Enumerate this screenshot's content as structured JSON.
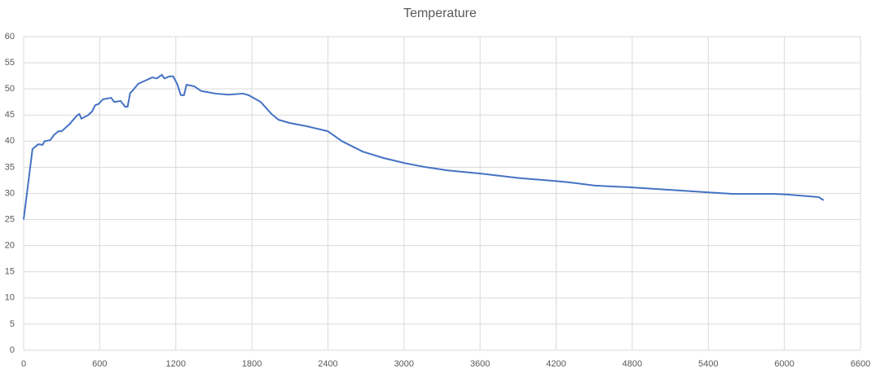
{
  "chart_data": {
    "type": "line",
    "title": "Temperature",
    "x": [
      0,
      70,
      115,
      150,
      165,
      210,
      240,
      275,
      300,
      360,
      420,
      440,
      455,
      510,
      540,
      565,
      590,
      625,
      690,
      715,
      765,
      800,
      820,
      840,
      860,
      905,
      970,
      1015,
      1050,
      1090,
      1110,
      1150,
      1180,
      1210,
      1240,
      1265,
      1285,
      1345,
      1400,
      1515,
      1615,
      1730,
      1775,
      1870,
      1955,
      2010,
      2095,
      2225,
      2400,
      2510,
      2675,
      2835,
      3005,
      3155,
      3345,
      3605,
      3925,
      4185,
      4310,
      4505,
      4760,
      5085,
      5405,
      5600,
      5920,
      6015,
      6270,
      6310
    ],
    "series": [
      {
        "name": "Temperature",
        "color": "#4472c4",
        "values": [
          25,
          38.5,
          39.4,
          39.3,
          40,
          40.2,
          41.2,
          41.9,
          41.9,
          43.2,
          44.9,
          45.2,
          44.3,
          45,
          45.7,
          46.9,
          47.1,
          48,
          48.3,
          47.5,
          47.7,
          46.6,
          46.6,
          49.2,
          49.7,
          51,
          51.7,
          52.2,
          52,
          52.7,
          52,
          52.4,
          52.4,
          51,
          48.8,
          48.8,
          50.8,
          50.5,
          49.6,
          49.1,
          48.9,
          49.1,
          48.8,
          47.5,
          45.2,
          44.1,
          43.5,
          42.9,
          41.9,
          40,
          38,
          36.8,
          35.8,
          35.1,
          34.4,
          33.8,
          32.9,
          32.4,
          32.1,
          31.5,
          31.2,
          30.7,
          30.2,
          29.9,
          29.9,
          29.8,
          29.3,
          28.7
        ]
      }
    ],
    "xlim": [
      0,
      6600
    ],
    "xticks": [
      0,
      600,
      1200,
      1800,
      2400,
      3000,
      3600,
      4200,
      4800,
      5400,
      6000,
      6600
    ],
    "ylim": [
      0,
      60
    ],
    "yticks": [
      0,
      5,
      10,
      15,
      20,
      25,
      30,
      35,
      40,
      45,
      50,
      55,
      60
    ],
    "grid": true
  }
}
